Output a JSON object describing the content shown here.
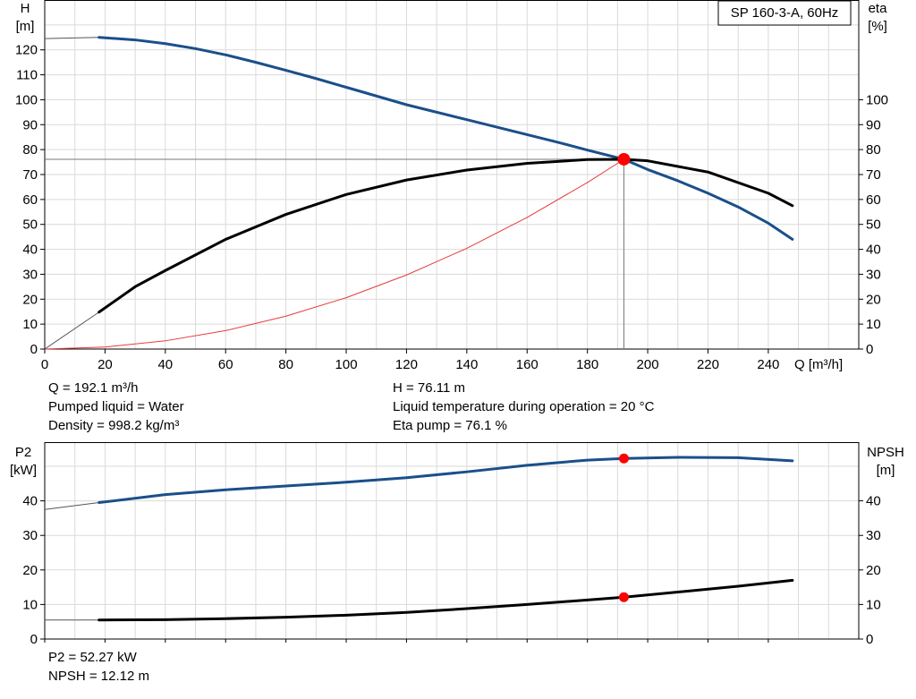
{
  "pump_label": "SP 160-3-A, 60Hz",
  "upper_chart": {
    "left_axis_title": "H",
    "left_axis_unit": "[m]",
    "right_axis_title": "eta",
    "right_axis_unit": "[%]",
    "x_axis_label": "Q [m³/h]"
  },
  "lower_chart": {
    "left_axis_title": "P2",
    "left_axis_unit": "[kW]",
    "right_axis_title": "NPSH",
    "right_axis_unit": "[m]"
  },
  "info": {
    "q": "Q = 192.1 m³/h",
    "liquid": "Pumped liquid = Water",
    "density": "Density = 998.2 kg/m³",
    "h": "H = 76.11 m",
    "temp": "Liquid temperature during operation = 20 °C",
    "eta": "Eta pump = 76.1 %",
    "p2": "P2 = 52.27 kW",
    "npsh": "NPSH = 12.12 m"
  },
  "chart_data": [
    {
      "type": "line",
      "title": "SP 160-3-A, 60Hz",
      "xlabel": "Q [m³/h]",
      "ylabel": "H [m]",
      "y2label": "eta [%]",
      "xlim": [
        0,
        270
      ],
      "ylim": [
        0,
        140
      ],
      "y2lim": [
        0,
        140
      ],
      "x_ticks": [
        0,
        20,
        40,
        60,
        80,
        100,
        120,
        140,
        160,
        180,
        200,
        220,
        240
      ],
      "y_ticks": [
        0,
        10,
        20,
        30,
        40,
        50,
        60,
        70,
        80,
        90,
        100,
        110,
        120
      ],
      "y2_ticks": [
        0,
        10,
        20,
        30,
        40,
        50,
        60,
        70,
        80,
        90,
        100
      ],
      "grid": true,
      "series": [
        {
          "name": "H",
          "axis": "left",
          "color": "#1a4f8a",
          "x": [
            0,
            18,
            30,
            40,
            50,
            60,
            70,
            80,
            90,
            100,
            110,
            120,
            130,
            140,
            150,
            160,
            170,
            180,
            192.1,
            200,
            210,
            220,
            230,
            240,
            248
          ],
          "y": [
            124.5,
            125,
            124,
            122.5,
            120.5,
            118,
            115,
            111.8,
            108.5,
            105,
            101.5,
            98,
            95,
            92,
            89,
            86,
            83,
            79.8,
            76.1,
            72,
            67.5,
            62.5,
            57,
            50.5,
            44
          ]
        },
        {
          "name": "eta",
          "axis": "right",
          "color": "#000000",
          "x": [
            0,
            18,
            30,
            40,
            60,
            80,
            100,
            120,
            140,
            160,
            180,
            192.1,
            200,
            220,
            240,
            248
          ],
          "y": [
            0,
            14.8,
            25,
            31.5,
            44,
            54,
            62,
            67.8,
            71.8,
            74.5,
            76,
            76.1,
            75.5,
            71,
            62.5,
            57.5
          ]
        },
        {
          "name": "system curve",
          "axis": "left",
          "color": "#e83a3a",
          "x": [
            0,
            20,
            40,
            60,
            80,
            100,
            120,
            140,
            160,
            180,
            192.1
          ],
          "y": [
            0,
            0.8,
            3.3,
            7.4,
            13.2,
            20.6,
            29.7,
            40.4,
            52.8,
            66.8,
            76.1
          ]
        }
      ],
      "duty_point": {
        "x": 192.1,
        "y": 76.11
      }
    },
    {
      "type": "line",
      "xlabel": "",
      "ylabel": "P2 [kW]",
      "y2label": "NPSH [m]",
      "xlim": [
        0,
        270
      ],
      "ylim": [
        0,
        57
      ],
      "y2lim": [
        0,
        57
      ],
      "y_ticks": [
        0,
        10,
        20,
        30,
        40
      ],
      "y2_ticks": [
        0,
        10,
        20,
        30,
        40
      ],
      "grid": true,
      "series": [
        {
          "name": "P2",
          "axis": "left",
          "color": "#1a4f8a",
          "x": [
            0,
            18,
            40,
            60,
            80,
            100,
            120,
            140,
            160,
            180,
            192.1,
            210,
            230,
            248
          ],
          "y": [
            37.5,
            39.5,
            41.8,
            43.2,
            44.3,
            45.4,
            46.7,
            48.4,
            50.3,
            51.8,
            52.27,
            52.6,
            52.5,
            51.6
          ]
        },
        {
          "name": "NPSH",
          "axis": "right",
          "color": "#000000",
          "x": [
            0,
            18,
            40,
            60,
            80,
            100,
            120,
            140,
            160,
            180,
            192.1,
            210,
            230,
            248
          ],
          "y": [
            5.5,
            5.5,
            5.6,
            5.9,
            6.3,
            6.9,
            7.7,
            8.8,
            10.0,
            11.3,
            12.12,
            13.6,
            15.3,
            17.0
          ]
        }
      ],
      "duty_points": [
        {
          "series": "P2",
          "x": 192.1,
          "y": 52.27
        },
        {
          "series": "NPSH",
          "x": 192.1,
          "y": 12.12
        }
      ]
    }
  ]
}
